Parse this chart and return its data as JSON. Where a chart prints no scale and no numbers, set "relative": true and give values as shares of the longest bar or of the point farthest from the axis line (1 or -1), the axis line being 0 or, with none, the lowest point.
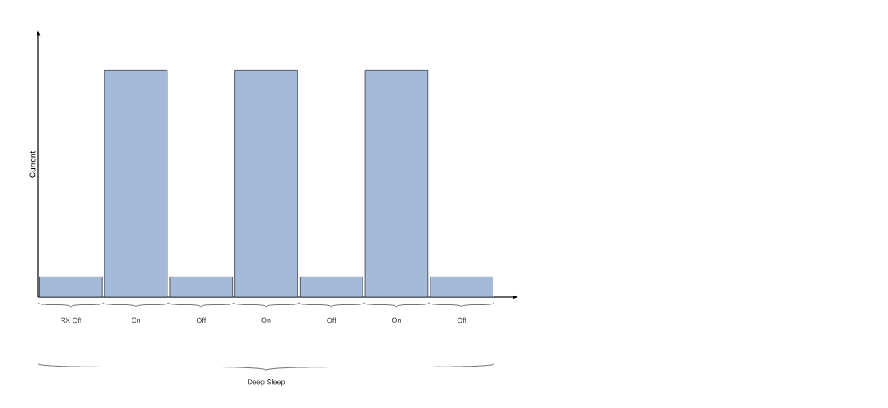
{
  "chart_data": {
    "type": "bar",
    "relative": true,
    "ylabel": "Current",
    "categories": [
      "RX Off",
      "On",
      "Off",
      "On",
      "Off",
      "On",
      "Off"
    ],
    "values": [
      0.09,
      1,
      0.09,
      1,
      0.09,
      1,
      0.09
    ],
    "color": "#a5b9d9",
    "annotations": [
      "Deep Sleep"
    ]
  }
}
